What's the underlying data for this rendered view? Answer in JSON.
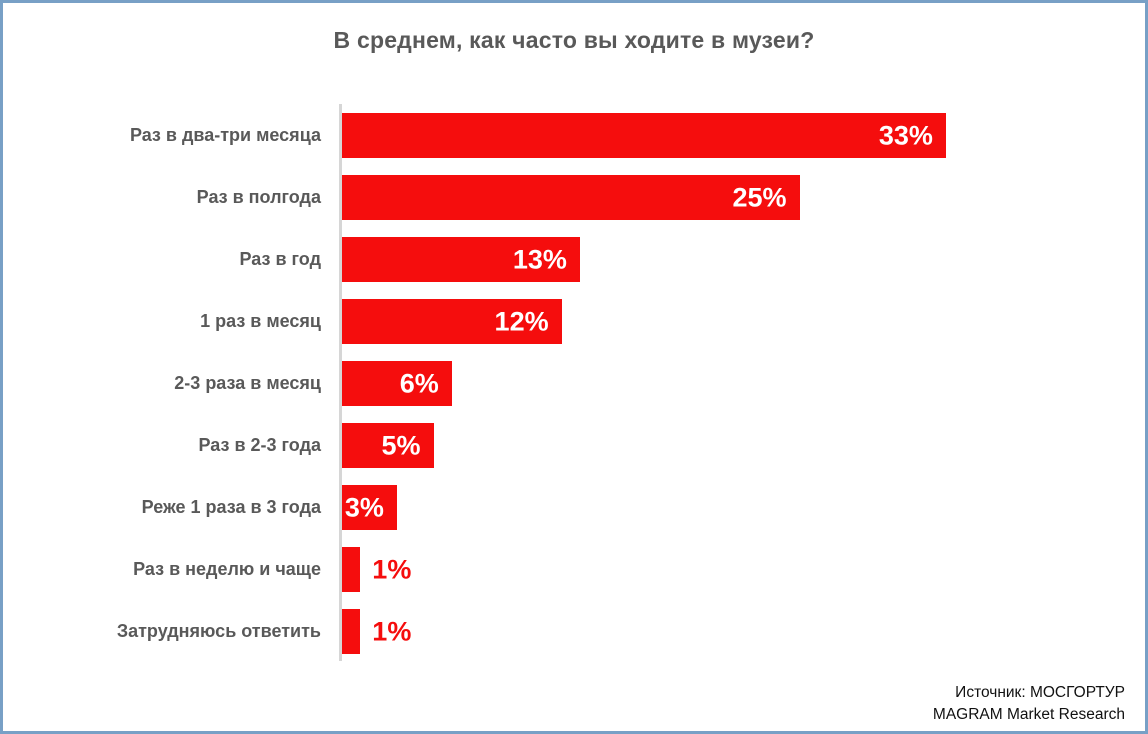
{
  "source": {
    "line1": "Источник: МОСГОРТУР",
    "line2": "MAGRAM Market Research"
  },
  "colors": {
    "bar": "#f50d0d",
    "category_label": "#595959",
    "title": "#595959",
    "value_inside": "#ffffff",
    "value_outside": "#f50d0d",
    "axis_line": "#d6d6d6",
    "frame_border": "#78a0c6",
    "background": "#ffffff"
  },
  "chart_data": {
    "type": "bar",
    "orientation": "horizontal",
    "title": "В среднем, как часто вы ходите в музеи?",
    "categories": [
      "Раз в два-три месяца",
      "Раз в полгода",
      "Раз в год",
      "1 раз в месяц",
      "2-3 раза в месяц",
      "Раз в 2-3 года",
      "Реже 1 раза в 3 года",
      "Раз в неделю и чаще",
      "Затрудняюсь ответить"
    ],
    "values": [
      33,
      25,
      13,
      12,
      6,
      5,
      3,
      1,
      1
    ],
    "value_labels": [
      "33%",
      "25%",
      "13%",
      "12%",
      "6%",
      "5%",
      "3%",
      "1%",
      "1%"
    ],
    "xlim": [
      0,
      35
    ],
    "grid": false,
    "legend": false,
    "value_label_placement_rule": "inside bar right-aligned (white) when value >= 3, outside bar (red) when value < 3"
  }
}
